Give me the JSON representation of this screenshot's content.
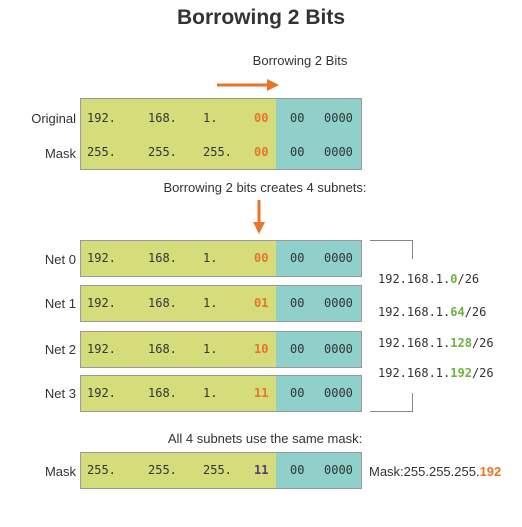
{
  "title": "Borrowing 2 Bits",
  "caption_top": "Borrowing 2 Bits",
  "caption_middle": "Borrowing 2 bits creates 4 subnets:",
  "caption_bottom": "All 4 subnets use the same mask:",
  "colors": {
    "green_field": "#d5dd7a",
    "teal_field": "#8fd0cb",
    "accent_orange": "#e8732a",
    "accent_green": "#6cb33f",
    "accent_purple": "#5a3a7a"
  },
  "top_rows": [
    {
      "label": "Original",
      "o1": "192.",
      "o2": "168.",
      "o3": "1.",
      "bits": "00",
      "b1": "00",
      "b2": "0000"
    },
    {
      "label": "Mask",
      "o1": "255.",
      "o2": "255.",
      "o3": "255.",
      "bits": "00",
      "b1": "00",
      "b2": "0000"
    }
  ],
  "subnets": [
    {
      "label": "Net 0",
      "o1": "192.",
      "o2": "168.",
      "o3": "1.",
      "bits": "00",
      "b1": "00",
      "b2": "0000",
      "addr_prefix": "192.168.1.",
      "addr_var": "0",
      "addr_suffix": "/26"
    },
    {
      "label": "Net 1",
      "o1": "192.",
      "o2": "168.",
      "o3": "1.",
      "bits": "01",
      "b1": "00",
      "b2": "0000",
      "addr_prefix": "192.168.1.",
      "addr_var": "64",
      "addr_suffix": "/26"
    },
    {
      "label": "Net 2",
      "o1": "192.",
      "o2": "168.",
      "o3": "1.",
      "bits": "10",
      "b1": "00",
      "b2": "0000",
      "addr_prefix": "192.168.1.",
      "addr_var": "128",
      "addr_suffix": "/26"
    },
    {
      "label": "Net 3",
      "o1": "192.",
      "o2": "168.",
      "o3": "1.",
      "bits": "11",
      "b1": "00",
      "b2": "0000",
      "addr_prefix": "192.168.1.",
      "addr_var": "192",
      "addr_suffix": "/26"
    }
  ],
  "mask_row": {
    "label": "Mask",
    "o1": "255.",
    "o2": "255.",
    "o3": "255.",
    "bits": "11",
    "b1": "00",
    "b2": "0000",
    "result_prefix": "Mask:255.255.255.",
    "result_var": "192"
  }
}
